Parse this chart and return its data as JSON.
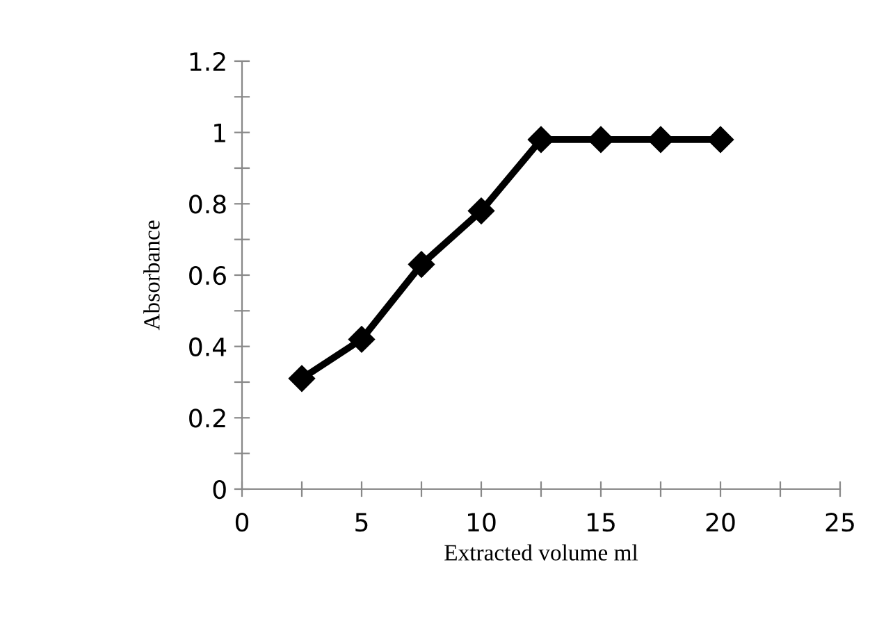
{
  "chart_data": {
    "type": "line",
    "xlabel": "Extracted volume ml",
    "ylabel": "Absorbance",
    "x": [
      2.5,
      5,
      7.5,
      10,
      12.5,
      15,
      17.5,
      20
    ],
    "series": [
      {
        "color": "#000000",
        "values": [
          0.31,
          0.42,
          0.63,
          0.78,
          0.98,
          0.98,
          0.98,
          0.98
        ]
      }
    ],
    "xlim": [
      0,
      25
    ],
    "xticks": [
      0,
      {
        "value": 2.5,
        "label": null
      },
      5,
      {
        "value": 7.5,
        "label": null
      },
      10,
      {
        "value": 12.5,
        "label": null
      },
      15,
      {
        "value": 17.5,
        "label": null
      },
      20,
      {
        "value": 22.5,
        "label": null
      },
      25
    ],
    "ylim": [
      0,
      1.2
    ],
    "yticks": [
      0,
      {
        "value": 0.1,
        "label": null
      },
      0.2,
      {
        "value": 0.3,
        "label": null
      },
      0.4,
      {
        "value": 0.5,
        "label": null
      },
      0.6,
      {
        "value": 0.7,
        "label": null
      },
      0.8,
      {
        "value": 0.9,
        "label": null
      },
      1,
      {
        "value": 1.1,
        "label": null
      },
      1.2
    ],
    "marker": "diamond",
    "line_style": "solid",
    "grid": false,
    "legend": false
  }
}
